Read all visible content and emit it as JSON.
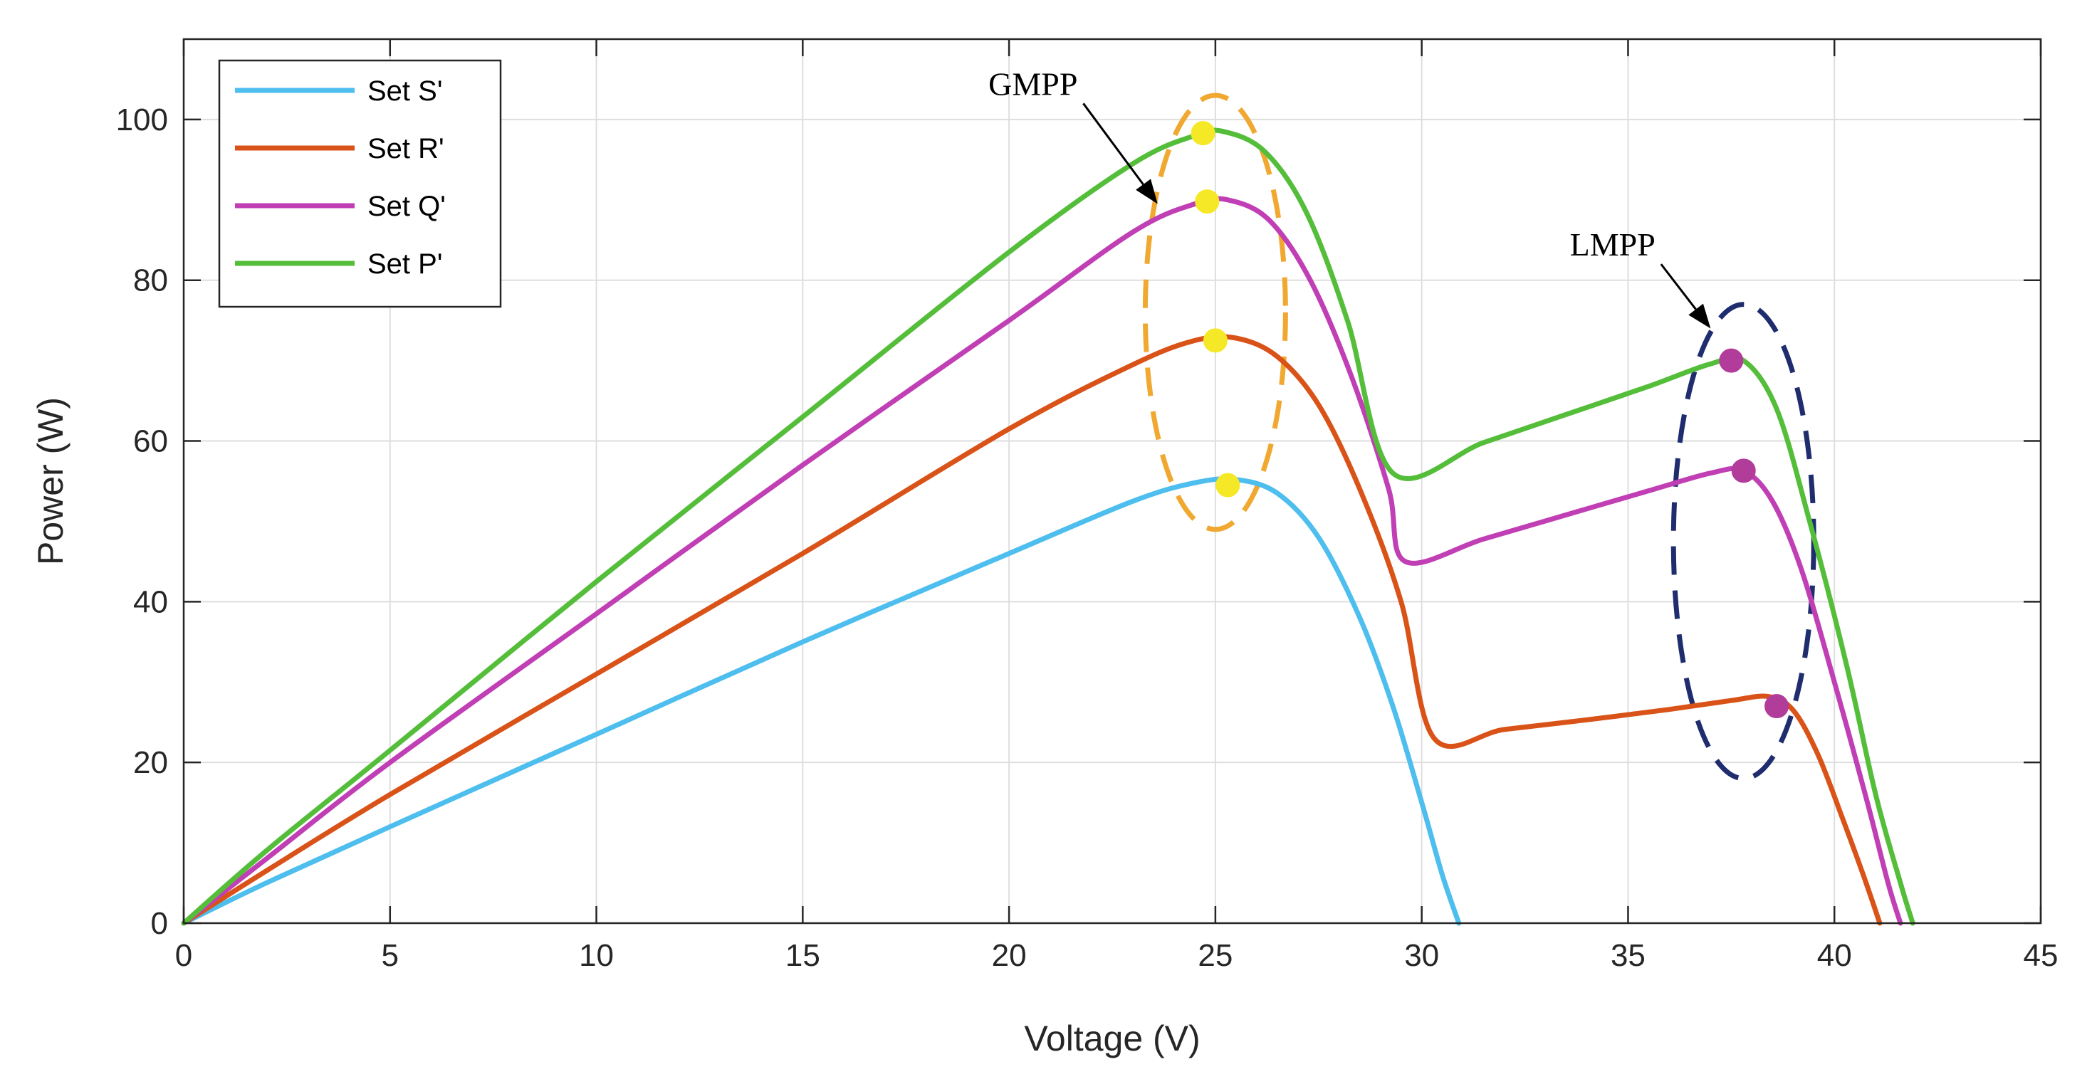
{
  "chart_data": {
    "type": "line",
    "xlabel": "Voltage (V)",
    "ylabel": "Power (W)",
    "xlim": [
      0,
      45
    ],
    "ylim": [
      0,
      110
    ],
    "xticks": [
      0,
      5,
      10,
      15,
      20,
      25,
      30,
      35,
      40,
      45
    ],
    "yticks": [
      0,
      20,
      40,
      60,
      80,
      100
    ],
    "grid": true,
    "legend_position": "top-left",
    "series": [
      {
        "name": "Set S'",
        "color": "#4DBEEE",
        "x": [
          0,
          2,
          5,
          10,
          15,
          20,
          23,
          24.5,
          25.5,
          26.5,
          27.5,
          28.5,
          29.3,
          30,
          30.5,
          30.9
        ],
        "y": [
          0,
          5,
          12,
          23.5,
          35,
          46,
          52.5,
          54.8,
          55.2,
          53.5,
          48,
          38,
          27,
          15,
          6,
          0
        ]
      },
      {
        "name": "Set R'",
        "color": "#D95319",
        "x": [
          0,
          2,
          5,
          10,
          15,
          20,
          23,
          24.5,
          25.5,
          26.5,
          27.5,
          28.5,
          29.5,
          30.3,
          32,
          34,
          36,
          37.5,
          38.4,
          39,
          39.6,
          40.2,
          40.7,
          41.1
        ],
        "y": [
          0,
          6.5,
          16,
          31,
          46,
          61.5,
          69.5,
          72.5,
          72.8,
          70.5,
          64.5,
          54,
          40,
          23,
          24.1,
          25.3,
          26.6,
          27.7,
          28.2,
          26.5,
          21,
          13,
          6,
          0
        ]
      },
      {
        "name": "Set Q'",
        "color": "#C13FB5",
        "x": [
          0,
          2,
          5,
          10,
          15,
          20,
          23,
          24.5,
          25.3,
          26.3,
          27.3,
          28.3,
          29.2,
          29.6,
          31.5,
          33.5,
          35.5,
          37,
          37.8,
          38.5,
          39.2,
          40,
          40.8,
          41.3,
          41.6
        ],
        "y": [
          0,
          8,
          20,
          38.5,
          57,
          75,
          86,
          89.5,
          90,
          87.5,
          80,
          68,
          54,
          45,
          47.8,
          50.8,
          53.8,
          56,
          56.3,
          52.5,
          44,
          30,
          15,
          5,
          0
        ]
      },
      {
        "name": "Set P'",
        "color": "#54BE3A",
        "x": [
          0,
          2,
          5,
          10,
          15,
          20,
          23,
          24.5,
          25.2,
          26.2,
          27.2,
          28.2,
          29.3,
          31.5,
          33.5,
          35.5,
          37,
          37.8,
          38.6,
          39.4,
          40.3,
          41,
          41.6,
          41.9
        ],
        "y": [
          0,
          9,
          21.5,
          42.5,
          63,
          83.5,
          94.5,
          98,
          98.5,
          96,
          88.5,
          75,
          56,
          59.8,
          63.3,
          66.8,
          69.6,
          70,
          64,
          50,
          32,
          16,
          5,
          0
        ]
      }
    ],
    "markers": [
      {
        "x": 24.7,
        "y": 98.3,
        "color": "#F5E826"
      },
      {
        "x": 24.8,
        "y": 89.8,
        "color": "#F5E826"
      },
      {
        "x": 25.0,
        "y": 72.5,
        "color": "#F5E826"
      },
      {
        "x": 25.3,
        "y": 54.5,
        "color": "#F5E826"
      },
      {
        "x": 37.5,
        "y": 70.0,
        "color": "#B23C9A"
      },
      {
        "x": 37.8,
        "y": 56.3,
        "color": "#B23C9A"
      },
      {
        "x": 38.6,
        "y": 27.0,
        "color": "#B23C9A"
      }
    ],
    "annotations": [
      {
        "text": "GMPP",
        "ellipse_color": "#F0A830",
        "ellipse_center": [
          25.0,
          76
        ],
        "ellipse_radii": [
          1.7,
          27
        ],
        "arrow_tail": [
          21.8,
          102
        ],
        "arrow_head": [
          23.6,
          89.5
        ]
      },
      {
        "text": "LMPP",
        "ellipse_color": "#1F2D6E",
        "ellipse_center": [
          37.8,
          47.5
        ],
        "ellipse_radii": [
          1.7,
          29.5
        ],
        "arrow_tail": [
          35.8,
          82
        ],
        "arrow_head": [
          37.0,
          74
        ]
      }
    ]
  }
}
